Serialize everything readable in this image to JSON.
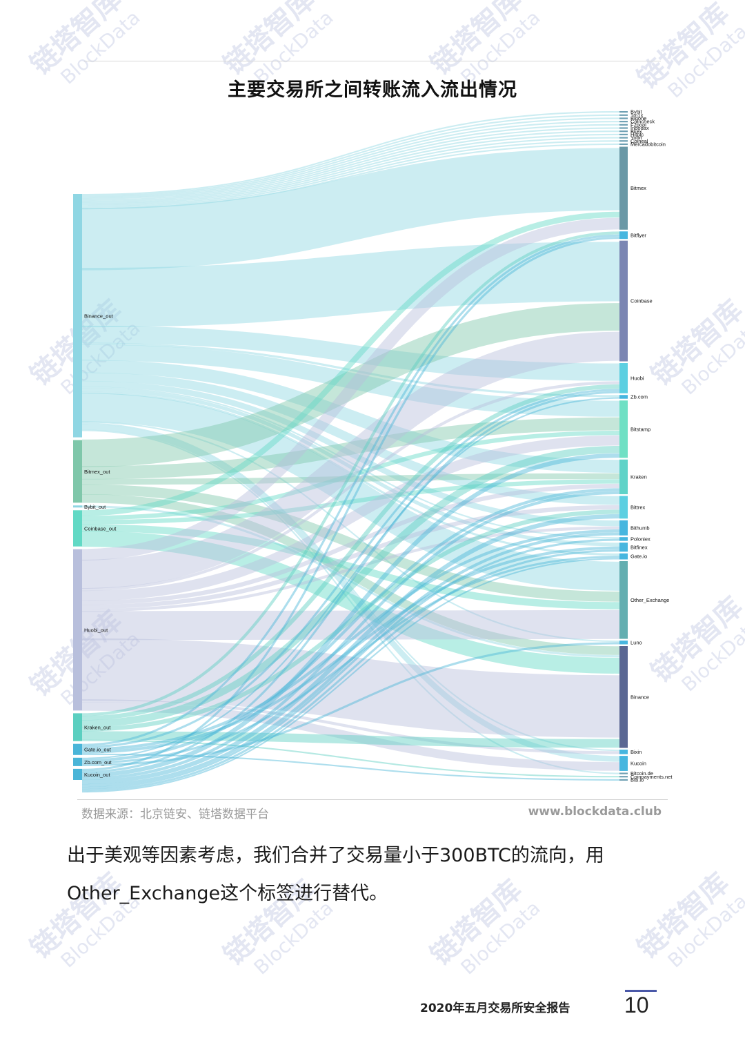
{
  "page": {
    "title": "主要交易所之间转账流入流出情况",
    "source_text": "数据来源：北京链安、链塔数据平台",
    "website": "www.blockdata.club",
    "body_line1": "出于美观等因素考虑，我们合并了交易量小于300BTC的流向，用",
    "body_line2": "Other_Exchange这个标签进行替代。",
    "footer_title": "2020年五月交易所安全报告",
    "page_number": "10",
    "watermark_cn": "链塔智库",
    "watermark_en": "BlockData"
  },
  "colors": {
    "watermark": "#cdd3e8",
    "accent": "#4a58a8"
  },
  "chart_data": {
    "type": "sankey",
    "title": "主要交易所之间转账流入流出情况",
    "sources": [
      {
        "name": "Binance_out",
        "value": 350,
        "color": "#8fd6e3"
      },
      {
        "name": "Bitmex_out",
        "value": 90,
        "color": "#7fc7aa"
      },
      {
        "name": "Bybit_out",
        "value": 3,
        "color": "#8fd6e3"
      },
      {
        "name": "Coinbase_out",
        "value": 52,
        "color": "#62d9c5"
      },
      {
        "name": "Huobi_out",
        "value": 232,
        "color": "#b8bfdc"
      },
      {
        "name": "Kraken_out",
        "value": 40,
        "color": "#5bcfc0"
      },
      {
        "name": "Gate.io_out",
        "value": 16,
        "color": "#4ab5d8"
      },
      {
        "name": "Zb.com_out",
        "value": 12,
        "color": "#4ab5d8"
      },
      {
        "name": "Kucoin_out",
        "value": 16,
        "color": "#4ab5d8"
      }
    ],
    "targets": [
      {
        "name": "Bybit",
        "value": 2,
        "color": "#6fa0b3"
      },
      {
        "name": "1m1x",
        "value": 2,
        "color": "#6fa0b3"
      },
      {
        "name": "Bigone",
        "value": 2,
        "color": "#6fa0b3"
      },
      {
        "name": "Coincheck",
        "value": 2,
        "color": "#6fa0b3"
      },
      {
        "name": "F2pool",
        "value": 2,
        "color": "#6fa0b3"
      },
      {
        "name": "Indodax",
        "value": 2,
        "color": "#6fa0b3"
      },
      {
        "name": "Bkex",
        "value": 2,
        "color": "#6fa0b3"
      },
      {
        "name": "Hitbtc",
        "value": 2,
        "color": "#6fa0b3"
      },
      {
        "name": "Yobit",
        "value": 2,
        "color": "#6fa0b3"
      },
      {
        "name": "Coineal",
        "value": 2,
        "color": "#6fa0b3"
      },
      {
        "name": "Mercadobitcoin",
        "value": 2,
        "color": "#6fa0b3"
      },
      {
        "name": "Bitmex",
        "value": 110,
        "color": "#6a98a6"
      },
      {
        "name": "Bitflyer",
        "value": 10,
        "color": "#47b6df"
      },
      {
        "name": "Coinbase",
        "value": 160,
        "color": "#7b86b3"
      },
      {
        "name": "Huobi",
        "value": 40,
        "color": "#5ccfe1"
      },
      {
        "name": "Zb.com",
        "value": 5,
        "color": "#47b6df"
      },
      {
        "name": "Bitstamp",
        "value": 76,
        "color": "#6fe0c4"
      },
      {
        "name": "Kraken",
        "value": 46,
        "color": "#5fd3c8"
      },
      {
        "name": "Bittrex",
        "value": 30,
        "color": "#5ccfe1"
      },
      {
        "name": "Bithumb",
        "value": 20,
        "color": "#47b6df"
      },
      {
        "name": "Poloniex",
        "value": 5,
        "color": "#47b6df"
      },
      {
        "name": "Bitfinex",
        "value": 12,
        "color": "#47b6df"
      },
      {
        "name": "Gate.io",
        "value": 8,
        "color": "#47b6df"
      },
      {
        "name": "Other_Exchange",
        "value": 103,
        "color": "#63aeb0"
      },
      {
        "name": "Luno",
        "value": 5,
        "color": "#47b6df"
      },
      {
        "name": "Binance",
        "value": 135,
        "color": "#5a6793"
      },
      {
        "name": "Bixin",
        "value": 6,
        "color": "#47b6df"
      },
      {
        "name": "Kucoin",
        "value": 20,
        "color": "#47b6df"
      },
      {
        "name": "Bitcoin.de",
        "value": 2,
        "color": "#6fa0b3"
      },
      {
        "name": "Coinpayments.net",
        "value": 2,
        "color": "#6fa0b3"
      },
      {
        "name": "Btb.io",
        "value": 2,
        "color": "#6fa0b3"
      }
    ],
    "flows": [
      {
        "from": "Binance_out",
        "to": "Bybit",
        "value": 2
      },
      {
        "from": "Binance_out",
        "to": "1m1x",
        "value": 2
      },
      {
        "from": "Binance_out",
        "to": "Bigone",
        "value": 2
      },
      {
        "from": "Binance_out",
        "to": "Coincheck",
        "value": 2
      },
      {
        "from": "Binance_out",
        "to": "F2pool",
        "value": 2
      },
      {
        "from": "Binance_out",
        "to": "Indodax",
        "value": 2
      },
      {
        "from": "Binance_out",
        "to": "Bkex",
        "value": 2
      },
      {
        "from": "Binance_out",
        "to": "Hitbtc",
        "value": 2
      },
      {
        "from": "Binance_out",
        "to": "Yobit",
        "value": 2
      },
      {
        "from": "Binance_out",
        "to": "Coineal",
        "value": 2
      },
      {
        "from": "Binance_out",
        "to": "Mercadobitcoin",
        "value": 2
      },
      {
        "from": "Binance_out",
        "to": "Bitmex",
        "value": 86
      },
      {
        "from": "Binance_out",
        "to": "Coinbase",
        "value": 82
      },
      {
        "from": "Binance_out",
        "to": "Huobi",
        "value": 24
      },
      {
        "from": "Binance_out",
        "to": "Zb.com",
        "value": 3
      },
      {
        "from": "Binance_out",
        "to": "Bitstamp",
        "value": 22
      },
      {
        "from": "Binance_out",
        "to": "Kraken",
        "value": 18
      },
      {
        "from": "Binance_out",
        "to": "Bittrex",
        "value": 12
      },
      {
        "from": "Binance_out",
        "to": "Bithumb",
        "value": 8
      },
      {
        "from": "Binance_out",
        "to": "Poloniex",
        "value": 2
      },
      {
        "from": "Binance_out",
        "to": "Bitfinex",
        "value": 5
      },
      {
        "from": "Binance_out",
        "to": "Gate.io",
        "value": 3
      },
      {
        "from": "Binance_out",
        "to": "Other_Exchange",
        "value": 40
      },
      {
        "from": "Binance_out",
        "to": "Luno",
        "value": 2
      },
      {
        "from": "Binance_out",
        "to": "Bixin",
        "value": 2
      },
      {
        "from": "Binance_out",
        "to": "Kucoin",
        "value": 8
      },
      {
        "from": "Binance_out",
        "to": "Bitcoin.de",
        "value": 2
      },
      {
        "from": "Bitmex_out",
        "to": "Coinbase",
        "value": 38
      },
      {
        "from": "Bitmex_out",
        "to": "Bitstamp",
        "value": 18
      },
      {
        "from": "Bitmex_out",
        "to": "Kraken",
        "value": 8
      },
      {
        "from": "Bitmex_out",
        "to": "Other_Exchange",
        "value": 14
      },
      {
        "from": "Bitmex_out",
        "to": "Binance",
        "value": 12
      },
      {
        "from": "Bybit_out",
        "to": "Binance",
        "value": 3
      },
      {
        "from": "Coinbase_out",
        "to": "Bitmex",
        "value": 8
      },
      {
        "from": "Coinbase_out",
        "to": "Bitstamp",
        "value": 6
      },
      {
        "from": "Coinbase_out",
        "to": "Kraken",
        "value": 6
      },
      {
        "from": "Coinbase_out",
        "to": "Other_Exchange",
        "value": 10
      },
      {
        "from": "Coinbase_out",
        "to": "Binance",
        "value": 22
      },
      {
        "from": "Huobi_out",
        "to": "Bitmex",
        "value": 16
      },
      {
        "from": "Huobi_out",
        "to": "Coinbase",
        "value": 40
      },
      {
        "from": "Huobi_out",
        "to": "Huobi",
        "value": 4
      },
      {
        "from": "Huobi_out",
        "to": "Bitstamp",
        "value": 14
      },
      {
        "from": "Huobi_out",
        "to": "Kraken",
        "value": 6
      },
      {
        "from": "Huobi_out",
        "to": "Bittrex",
        "value": 6
      },
      {
        "from": "Huobi_out",
        "to": "Bithumb",
        "value": 4
      },
      {
        "from": "Huobi_out",
        "to": "Other_Exchange",
        "value": 40
      },
      {
        "from": "Huobi_out",
        "to": "Binance",
        "value": 86
      },
      {
        "from": "Huobi_out",
        "to": "Bixin",
        "value": 4
      },
      {
        "from": "Huobi_out",
        "to": "Kucoin",
        "value": 12
      },
      {
        "from": "Kraken_out",
        "to": "Bitflyer",
        "value": 4
      },
      {
        "from": "Kraken_out",
        "to": "Huobi",
        "value": 6
      },
      {
        "from": "Kraken_out",
        "to": "Bitstamp",
        "value": 10
      },
      {
        "from": "Kraken_out",
        "to": "Bittrex",
        "value": 6
      },
      {
        "from": "Kraken_out",
        "to": "Binance",
        "value": 12
      },
      {
        "from": "Kraken_out",
        "to": "Coinpayments.net",
        "value": 2
      },
      {
        "from": "Gate.io_out",
        "to": "Bitflyer",
        "value": 3
      },
      {
        "from": "Gate.io_out",
        "to": "Huobi",
        "value": 3
      },
      {
        "from": "Gate.io_out",
        "to": "Bithumb",
        "value": 4
      },
      {
        "from": "Gate.io_out",
        "to": "Bitfinex",
        "value": 4
      },
      {
        "from": "Gate.io_out",
        "to": "Btb.io",
        "value": 2
      },
      {
        "from": "Zb.com_out",
        "to": "Zb.com",
        "value": 2
      },
      {
        "from": "Zb.com_out",
        "to": "Kraken",
        "value": 4
      },
      {
        "from": "Zb.com_out",
        "to": "Gate.io",
        "value": 3
      },
      {
        "from": "Zb.com_out",
        "to": "Luno",
        "value": 3
      },
      {
        "from": "Kucoin_out",
        "to": "Bitflyer",
        "value": 3
      },
      {
        "from": "Kucoin_out",
        "to": "Huobi",
        "value": 3
      },
      {
        "from": "Kucoin_out",
        "to": "Bitstamp",
        "value": 6
      },
      {
        "from": "Kucoin_out",
        "to": "Kraken",
        "value": 4
      },
      {
        "from": "Kucoin_out",
        "to": "Bittrex",
        "value": 6
      },
      {
        "from": "Kucoin_out",
        "to": "Bithumb",
        "value": 4
      },
      {
        "from": "Kucoin_out",
        "to": "Poloniex",
        "value": 3
      },
      {
        "from": "Kucoin_out",
        "to": "Bitfinex",
        "value": 3
      },
      {
        "from": "Kucoin_out",
        "to": "Gate.io",
        "value": 2
      }
    ]
  }
}
